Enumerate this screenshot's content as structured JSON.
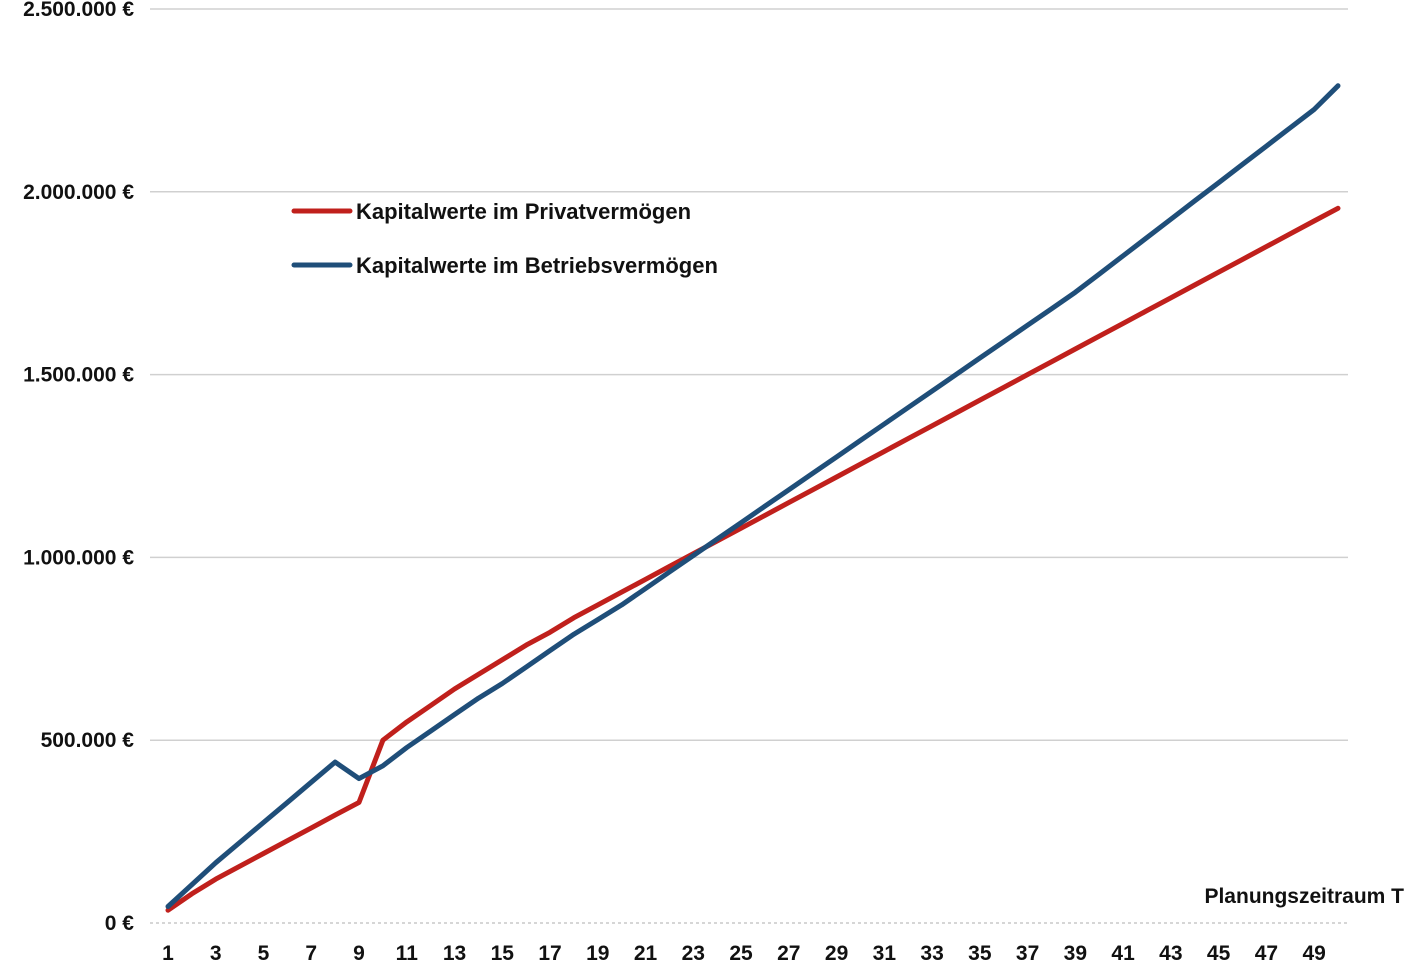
{
  "chart_data": {
    "type": "line",
    "title": "",
    "xlabel": "Planungszeitraum T",
    "ylabel": "",
    "x": [
      1,
      2,
      3,
      4,
      5,
      6,
      7,
      8,
      9,
      10,
      11,
      12,
      13,
      14,
      15,
      16,
      17,
      18,
      19,
      20,
      21,
      22,
      23,
      24,
      25,
      26,
      27,
      28,
      29,
      30,
      31,
      32,
      33,
      34,
      35,
      36,
      37,
      38,
      39,
      40,
      41,
      42,
      43,
      44,
      45,
      46,
      47,
      48,
      49,
      50
    ],
    "x_tick_labels": [
      "1",
      "3",
      "5",
      "7",
      "9",
      "11",
      "13",
      "15",
      "17",
      "19",
      "21",
      "23",
      "25",
      "27",
      "29",
      "31",
      "33",
      "35",
      "37",
      "39",
      "41",
      "43",
      "45",
      "47",
      "49"
    ],
    "ylim": [
      0,
      2500000
    ],
    "y_tick_values": [
      0,
      500000,
      1000000,
      1500000,
      2000000,
      2500000
    ],
    "y_tick_labels": [
      "0 €",
      "500.000 €",
      "1.000.000 €",
      "1.500.000 €",
      "2.000.000 €",
      "2.500.000 €"
    ],
    "grid": true,
    "legend_position": "top-left",
    "series": [
      {
        "name": "Kapitalwerte im Privatvermögen",
        "color": "#c0201c",
        "values": [
          35000,
          80000,
          120000,
          155000,
          190000,
          225000,
          260000,
          295000,
          330000,
          500000,
          550000,
          595000,
          640000,
          680000,
          720000,
          760000,
          795000,
          835000,
          870000,
          905000,
          940000,
          975000,
          1010000,
          1045000,
          1080000,
          1115000,
          1150000,
          1185000,
          1220000,
          1255000,
          1290000,
          1325000,
          1360000,
          1395000,
          1430000,
          1465000,
          1500000,
          1535000,
          1570000,
          1605000,
          1640000,
          1675000,
          1710000,
          1745000,
          1780000,
          1815000,
          1850000,
          1885000,
          1920000,
          1955000
        ]
      },
      {
        "name": "Kapitalwerte im Betriebsvermögen",
        "color": "#1f4e79",
        "values": [
          45000,
          105000,
          165000,
          220000,
          275000,
          330000,
          385000,
          440000,
          395000,
          430000,
          480000,
          525000,
          570000,
          615000,
          655000,
          700000,
          745000,
          790000,
          830000,
          870000,
          915000,
          960000,
          1005000,
          1050000,
          1095000,
          1140000,
          1185000,
          1230000,
          1275000,
          1320000,
          1365000,
          1410000,
          1455000,
          1500000,
          1545000,
          1590000,
          1635000,
          1680000,
          1725000,
          1775000,
          1825000,
          1875000,
          1925000,
          1975000,
          2025000,
          2075000,
          2125000,
          2175000,
          2225000,
          2290000
        ]
      }
    ]
  }
}
